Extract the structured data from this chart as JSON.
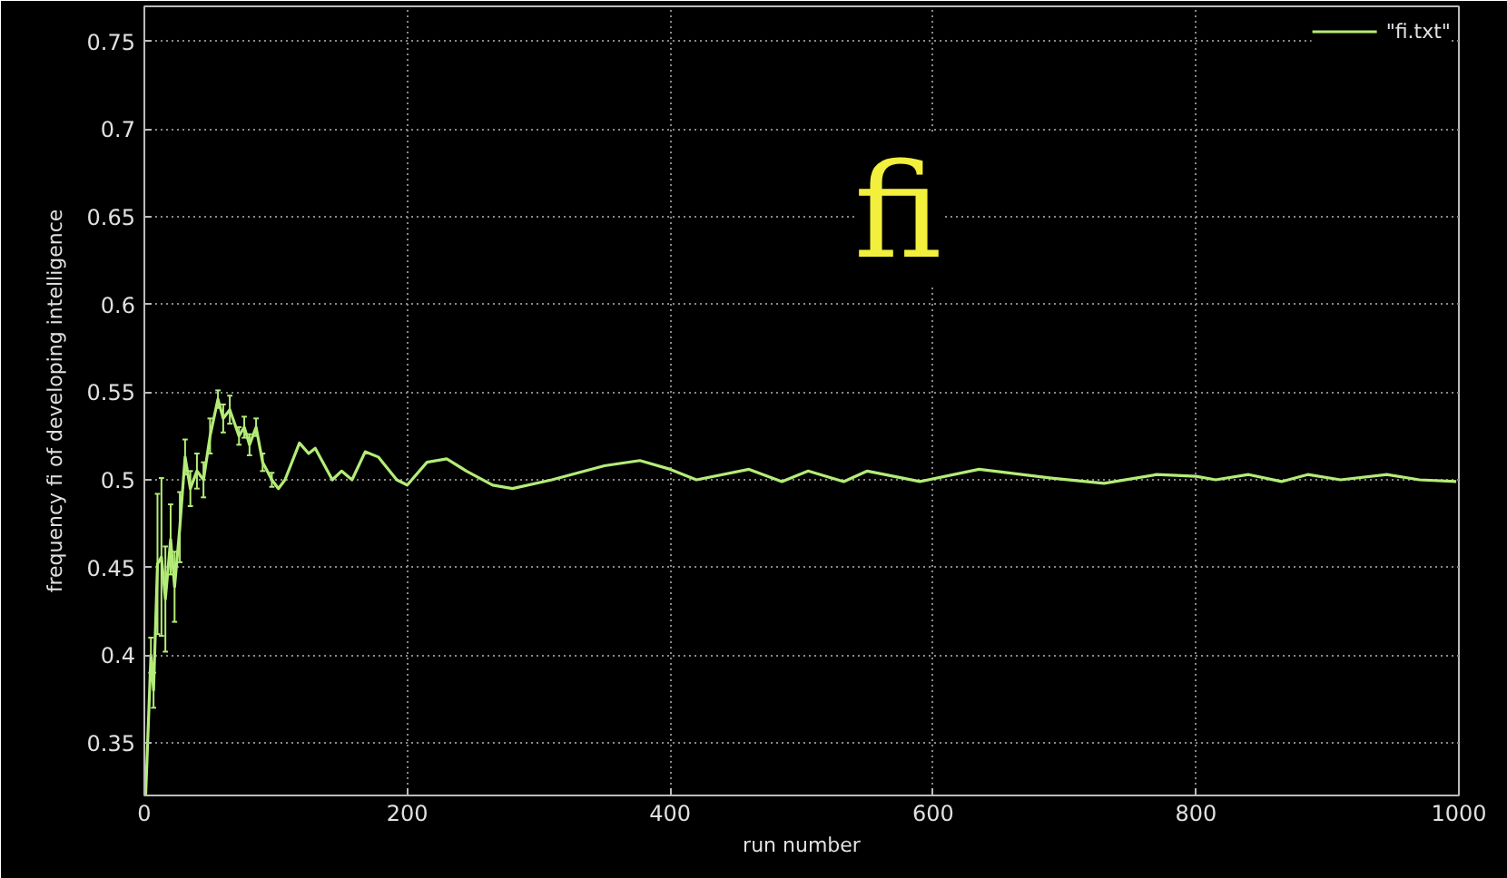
{
  "chart_data": {
    "type": "line",
    "xlabel": "run number",
    "ylabel": "frequency fi of developing intelligence",
    "annotations": [
      "fi"
    ],
    "x": [
      1,
      5,
      7,
      10,
      13,
      16,
      20,
      23,
      27,
      31,
      35,
      40,
      45,
      50,
      56,
      60,
      65,
      72,
      76,
      80,
      85,
      90,
      97,
      102,
      107,
      118,
      125,
      130,
      143,
      150,
      158,
      168,
      178,
      192,
      200,
      215,
      230,
      245,
      265,
      280,
      310,
      350,
      377,
      400,
      420,
      460,
      485,
      505,
      532,
      550,
      590,
      635,
      690,
      730,
      770,
      800,
      815,
      840,
      865,
      885,
      910,
      945,
      970,
      998
    ],
    "series": [
      {
        "name": "\"fi.txt\"",
        "color": "#b4ec78",
        "values": [
          0.32,
          0.4,
          0.38,
          0.452,
          0.456,
          0.432,
          0.466,
          0.439,
          0.473,
          0.513,
          0.495,
          0.505,
          0.5,
          0.525,
          0.546,
          0.535,
          0.54,
          0.525,
          0.53,
          0.52,
          0.53,
          0.51,
          0.5,
          0.495,
          0.5,
          0.521,
          0.515,
          0.518,
          0.5,
          0.505,
          0.5,
          0.516,
          0.513,
          0.5,
          0.497,
          0.51,
          0.512,
          0.505,
          0.497,
          0.495,
          0.5,
          0.508,
          0.511,
          0.506,
          0.5,
          0.506,
          0.499,
          0.505,
          0.499,
          0.505,
          0.499,
          0.506,
          0.501,
          0.498,
          0.503,
          0.502,
          0.5,
          0.503,
          0.499,
          0.503,
          0.5,
          0.503,
          0.5,
          0.499
        ],
        "errors": [
          null,
          0.01,
          0.01,
          0.04,
          0.045,
          0.03,
          0.02,
          0.02,
          0.02,
          0.01,
          0.01,
          0.01,
          0.01,
          0.01,
          0.005,
          0.008,
          0.008,
          0.005,
          0.006,
          0.006,
          0.005,
          0.005,
          0.004,
          null,
          null,
          null,
          null,
          null,
          null,
          null,
          null,
          null,
          null,
          null,
          null,
          null,
          null,
          null,
          null,
          null,
          null,
          null,
          null,
          null,
          null,
          null,
          null,
          null,
          null,
          null,
          null,
          null,
          null,
          null,
          null,
          null,
          null,
          null,
          null,
          null,
          null,
          null,
          null,
          null
        ]
      }
    ],
    "xlim": [
      0,
      1000
    ],
    "ylim": [
      0.32,
      0.77
    ],
    "xticks": [
      0,
      200,
      400,
      600,
      800,
      1000
    ],
    "yticks": [
      0.35,
      0.4,
      0.45,
      0.5,
      0.55,
      0.6,
      0.65,
      0.7,
      0.75
    ],
    "grid": true,
    "legend": "top right",
    "marker": "none",
    "line_style": "solid"
  }
}
